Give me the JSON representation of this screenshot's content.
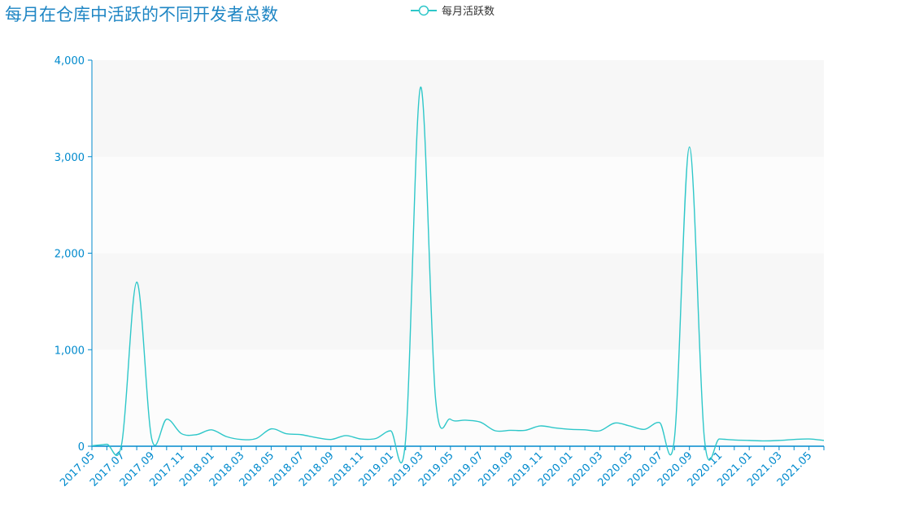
{
  "chart_data": {
    "type": "line",
    "title": "每月在仓库中活跃的不同开发者总数",
    "series": [
      {
        "name": "每月活跃数",
        "color": "#2ec7c9",
        "values": [
          5,
          20,
          30,
          1700,
          80,
          280,
          130,
          120,
          170,
          100,
          70,
          80,
          180,
          130,
          120,
          90,
          70,
          110,
          75,
          80,
          160,
          70,
          3720,
          500,
          280,
          270,
          250,
          160,
          165,
          165,
          210,
          190,
          175,
          170,
          160,
          240,
          210,
          175,
          245,
          90,
          3100,
          80,
          75,
          65,
          60,
          55,
          60,
          70,
          75,
          60
        ]
      }
    ],
    "xlabels": [
      "2017.05",
      "2017.07",
      "2017.09",
      "2017.11",
      "2018.01",
      "2018.03",
      "2018.05",
      "2018.07",
      "2018.09",
      "2018.11",
      "2019.01",
      "2019.03",
      "2019.05",
      "2019.07",
      "2019.09",
      "2019.11",
      "2020.01",
      "2020.03",
      "2020.05",
      "2020.07",
      "2020.09",
      "2020.11",
      "2021.01",
      "2021.03",
      "2021.05"
    ],
    "yticks": [
      "0",
      "1,000",
      "2,000",
      "3,000",
      "4,000"
    ],
    "ylim": [
      0,
      4000
    ],
    "axis_color": "#008acd",
    "band_color": "#f7f7f7",
    "legend_position": "top-center",
    "grid": true
  }
}
